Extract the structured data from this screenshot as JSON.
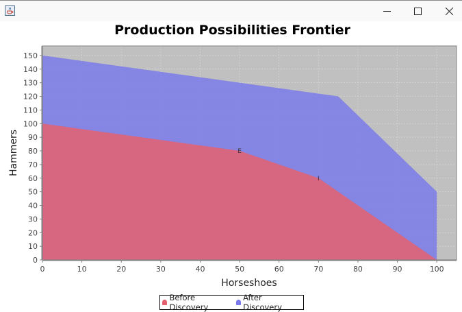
{
  "window": {
    "title": "",
    "icon": "java-coffee-icon",
    "controls": [
      "minimize-icon",
      "maximize-icon",
      "close-icon"
    ]
  },
  "chart_data": {
    "type": "area",
    "title": "Production Possibilities Frontier",
    "xlabel": "Horseshoes",
    "ylabel": "Hammers",
    "xlim": [
      0,
      105
    ],
    "ylim": [
      0,
      157
    ],
    "xticks": [
      0,
      10,
      20,
      30,
      40,
      50,
      60,
      70,
      80,
      90,
      100
    ],
    "yticks": [
      0,
      10,
      20,
      30,
      40,
      50,
      60,
      70,
      80,
      90,
      100,
      110,
      120,
      130,
      140,
      150
    ],
    "grid": true,
    "legend_position": "bottom",
    "series": [
      {
        "name": "Before Discovery",
        "color": "#e5606e",
        "x": [
          0,
          50,
          70,
          100
        ],
        "y": [
          100,
          80,
          60,
          0
        ]
      },
      {
        "name": "After Discovery",
        "color": "#7878ea",
        "x": [
          0,
          75,
          100
        ],
        "y": [
          150,
          120,
          50
        ]
      }
    ],
    "annotations": [
      {
        "text": "E",
        "x": 50,
        "y": 80
      },
      {
        "text": "I",
        "x": 70,
        "y": 60
      }
    ]
  }
}
